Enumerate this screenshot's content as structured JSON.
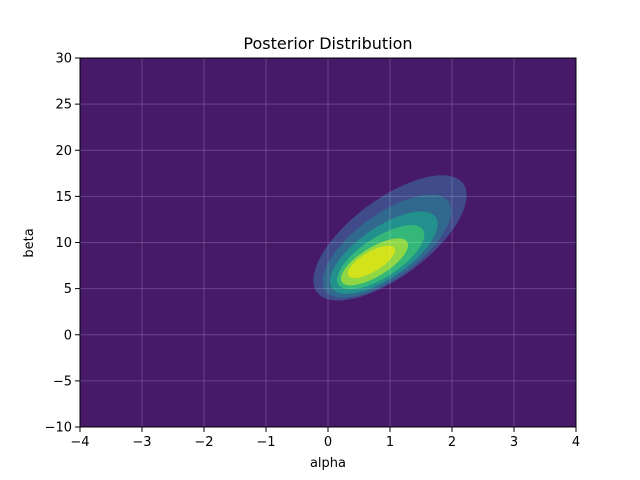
{
  "chart_data": {
    "type": "contour",
    "title": "Posterior Distribution",
    "xlabel": "alpha",
    "ylabel": "beta",
    "xlim": [
      -4,
      4
    ],
    "ylim": [
      -10,
      30
    ],
    "xticks": [
      -4,
      -3,
      -2,
      -1,
      0,
      1,
      2,
      3,
      4
    ],
    "yticks": [
      -10,
      -5,
      0,
      5,
      10,
      15,
      20,
      25,
      30
    ],
    "grid": true,
    "background_color": "#471a69",
    "levels": [
      {
        "color": "#3f4b8a",
        "center": [
          1.0,
          10.5
        ],
        "semi_major": [
          1.9,
          9.5
        ],
        "semi_minor": [
          0.95,
          4.2
        ]
      },
      {
        "color": "#31688e",
        "center": [
          0.95,
          9.6
        ],
        "semi_major": [
          1.6,
          7.8
        ],
        "semi_minor": [
          0.78,
          3.5
        ]
      },
      {
        "color": "#22908c",
        "center": [
          0.9,
          8.9
        ],
        "semi_major": [
          1.35,
          6.2
        ],
        "semi_minor": [
          0.62,
          2.8
        ]
      },
      {
        "color": "#35b779",
        "center": [
          0.85,
          8.4
        ],
        "semi_major": [
          1.1,
          4.8
        ],
        "semi_minor": [
          0.48,
          2.2
        ]
      },
      {
        "color": "#8fd744",
        "center": [
          0.75,
          7.9
        ],
        "semi_major": [
          0.85,
          3.5
        ],
        "semi_minor": [
          0.35,
          1.6
        ]
      },
      {
        "color": "#d2e21b",
        "center": [
          0.7,
          7.9
        ],
        "semi_major": [
          0.6,
          2.4
        ],
        "semi_minor": [
          0.24,
          1.1
        ]
      }
    ]
  }
}
